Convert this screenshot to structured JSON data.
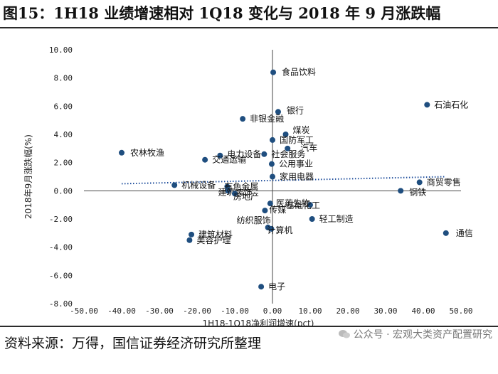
{
  "figure": {
    "title": "图15：1H18 业绩增速相对 1Q18 变化与 2018 年 9 月涨跌幅",
    "source": "资料来源：万得，国信证券经济研究所整理",
    "watermark": "公众号 · 宏观大类资产配置研究"
  },
  "colors": {
    "point": "#1f4e7f",
    "trend": "#1f4e9c",
    "axis": "#444444"
  },
  "chart_data": {
    "type": "scatter",
    "xlabel": "1H18-1Q18净利润增速(pct)",
    "ylabel": "2018年9月涨跌幅(%)",
    "xlim": [
      -50,
      50
    ],
    "ylim": [
      -8,
      10
    ],
    "xticks": [
      -50,
      -40,
      -30,
      -20,
      -10,
      0,
      10,
      20,
      30,
      40,
      50
    ],
    "yticks": [
      -8,
      -6,
      -4,
      -2,
      0,
      2,
      4,
      6,
      8,
      10
    ],
    "xtick_labels": [
      "-50.00",
      "-40.00",
      "-30.00",
      "-20.00",
      "-10.00",
      "0.00",
      "10.00",
      "20.00",
      "30.00",
      "40.00",
      "50.00"
    ],
    "ytick_labels": [
      "-8.00",
      "-6.00",
      "-4.00",
      "-2.00",
      "0.00",
      "2.00",
      "4.00",
      "6.00",
      "8.00",
      "10.00"
    ],
    "trendline": {
      "style": "dotted",
      "x": [
        -40,
        46
      ],
      "y": [
        0.5,
        1.0
      ]
    },
    "points": [
      {
        "label": "食品饮料",
        "x": 0.2,
        "y": 8.4
      },
      {
        "label": "石油石化",
        "x": 41.0,
        "y": 6.1
      },
      {
        "label": "银行",
        "x": 1.5,
        "y": 5.6
      },
      {
        "label": "非银金融",
        "x": -7.9,
        "y": 5.1
      },
      {
        "label": "煤炭",
        "x": 3.5,
        "y": 4.0
      },
      {
        "label": "国防军工",
        "x": 0.0,
        "y": 3.6
      },
      {
        "label": "汽车",
        "x": 4.0,
        "y": 3.0
      },
      {
        "label": "农林牧渔",
        "x": -40.0,
        "y": 2.7
      },
      {
        "label": "电力设备",
        "x": -13.9,
        "y": 2.5
      },
      {
        "label": "社会服务",
        "x": -2.2,
        "y": 2.6
      },
      {
        "label": "交通运输",
        "x": -17.9,
        "y": 2.2
      },
      {
        "label": "公用事业",
        "x": -0.2,
        "y": 1.9
      },
      {
        "label": "家用电器",
        "x": 0.0,
        "y": 1.0
      },
      {
        "label": "机械设备",
        "x": -26.0,
        "y": 0.4
      },
      {
        "label": "有色金属",
        "x": -12.0,
        "y": 0.3
      },
      {
        "label": "建筑装饰",
        "x": -11.8,
        "y": 0.0
      },
      {
        "label": "房地产",
        "x": -10.0,
        "y": -0.2
      },
      {
        "label": "钢铁",
        "x": 34.0,
        "y": 0.0
      },
      {
        "label": "商贸零售",
        "x": 39.0,
        "y": 0.6
      },
      {
        "label": "医药生物",
        "x": -0.6,
        "y": -0.9
      },
      {
        "label": "基础化工",
        "x": 10.0,
        "y": -1.0
      },
      {
        "label": "传媒",
        "x": -2.0,
        "y": -1.4
      },
      {
        "label": "轻工制造",
        "x": 10.5,
        "y": -2.0
      },
      {
        "label": "纺织服饰",
        "x": -1.2,
        "y": -2.6
      },
      {
        "label": "计算机",
        "x": -0.3,
        "y": -2.7
      },
      {
        "label": "通信",
        "x": 46.0,
        "y": -3.0
      },
      {
        "label": "建筑材料",
        "x": -21.5,
        "y": -3.1
      },
      {
        "label": "美容护理",
        "x": -22.0,
        "y": -3.5
      },
      {
        "label": "电子",
        "x": -3.0,
        "y": -6.8
      }
    ]
  }
}
